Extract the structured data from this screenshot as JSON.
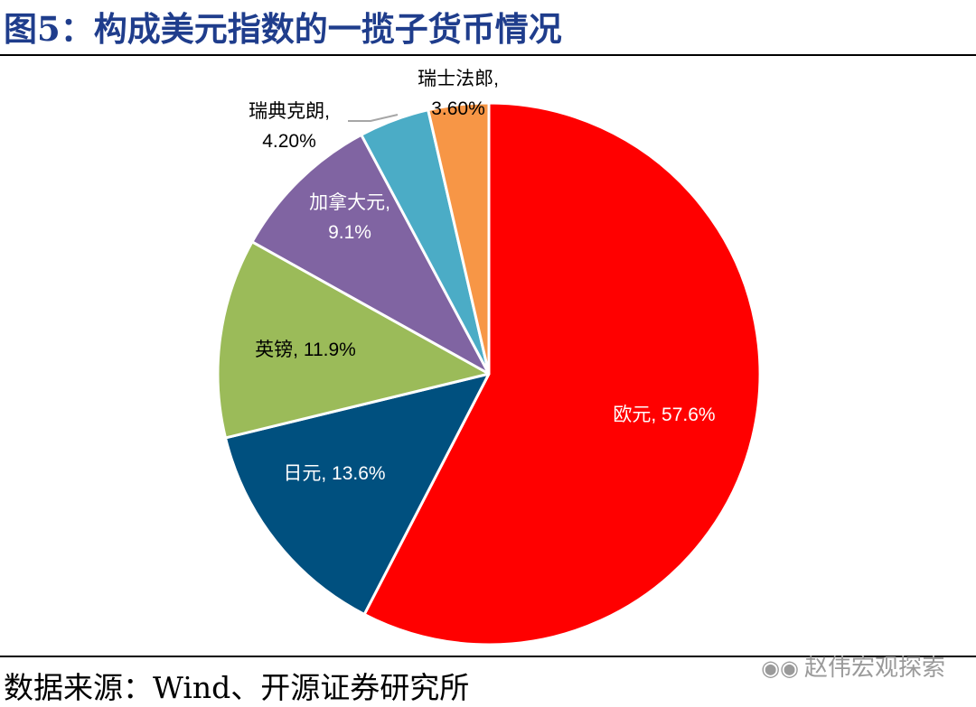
{
  "title": "图5：构成美元指数的一揽子货币情况",
  "source": "数据来源：Wind、开源证券研究所",
  "watermark": "赵伟宏观探索",
  "watermark_icon": "wechat-icon",
  "colors": {
    "title": "#1f3d8c"
  },
  "chart_data": {
    "type": "pie",
    "title": "",
    "unit": "%",
    "start": "12 o'clock",
    "direction": "clockwise",
    "slices": [
      {
        "label": "欧元",
        "value": 57.6,
        "display": "57.6%",
        "color": "#ff0000",
        "label_color": "#ffffff",
        "text": "欧元, 57.6%"
      },
      {
        "label": "日元",
        "value": 13.6,
        "display": "13.6%",
        "color": "#00507f",
        "label_color": "#ffffff",
        "text": "日元, 13.6%"
      },
      {
        "label": "英镑",
        "value": 11.9,
        "display": "11.9%",
        "color": "#9bbb59",
        "label_color": "#000000",
        "text": "英镑, 11.9%"
      },
      {
        "label": "加拿大元",
        "value": 9.1,
        "display": "9.1%",
        "color": "#8064a2",
        "label_color": "#ffffff",
        "line1": "加拿大元,",
        "line2": "9.1%"
      },
      {
        "label": "瑞典克朗",
        "value": 4.2,
        "display": "4.20%",
        "color": "#4bacc6",
        "label_color": "#000000",
        "line1": "瑞典克朗,",
        "line2": "4.20%"
      },
      {
        "label": "瑞士法郎",
        "value": 3.6,
        "display": "3.60%",
        "color": "#f79646",
        "label_color": "#000000",
        "line1": "瑞士法郎,",
        "line2": "3.60%"
      }
    ]
  }
}
